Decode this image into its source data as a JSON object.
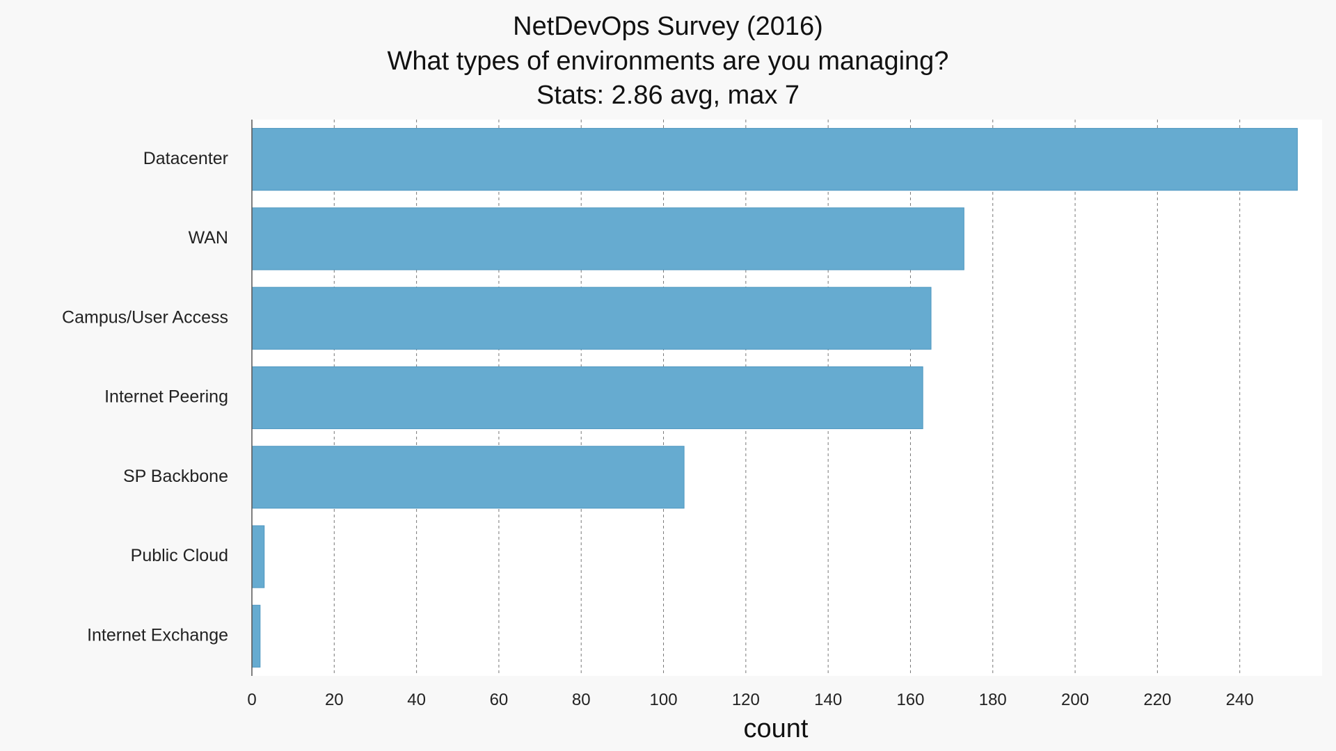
{
  "chart_data": {
    "type": "bar",
    "orientation": "horizontal",
    "title": [
      "NetDevOps Survey (2016)",
      "What types of environments are you managing?",
      "Stats: 2.86 avg, max 7"
    ],
    "xlabel": "count",
    "ylabel": "",
    "categories": [
      "Datacenter",
      "WAN",
      "Campus/User Access",
      "Internet Peering",
      "SP Backbone",
      "Public Cloud",
      "Internet Exchange"
    ],
    "values": [
      254,
      173,
      165,
      163,
      105,
      3,
      2
    ],
    "xlim": [
      0,
      260
    ],
    "xticks": [
      0,
      20,
      40,
      60,
      80,
      100,
      120,
      140,
      160,
      180,
      200,
      220,
      240
    ],
    "grid": "vertical-dashed",
    "legend": "none",
    "colors": {
      "bar": "#66abd0",
      "bar_edge": "#4f97c0",
      "plot_bg": "#ffffff",
      "page_bg": "#f8f8f8"
    }
  }
}
